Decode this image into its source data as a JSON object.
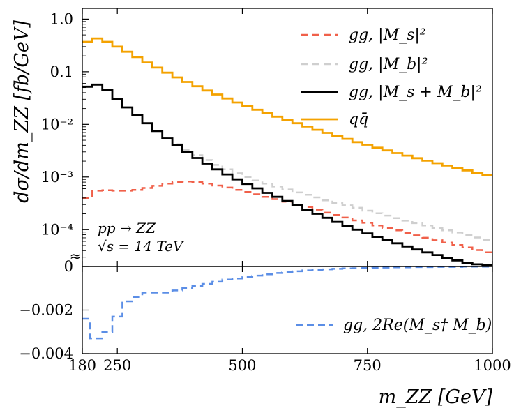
{
  "chart_data": {
    "type": "line",
    "x_range": [
      180,
      1000
    ],
    "xlabel": "m_ZZ [GeV]",
    "ylabel": "dσ/dm_ZZ [fb/GeV]",
    "annotation": {
      "line1": "pp → ZZ",
      "line2": "√s = 14 TeV"
    },
    "axis_break_symbol": "≈",
    "upper_panel": {
      "scale": "log",
      "ylim": [
        2e-05,
        1.6
      ],
      "x_ticks": [
        180,
        250,
        500,
        750,
        1000
      ],
      "y_ticks": [
        {
          "value": 1.0,
          "label": "1.0"
        },
        {
          "value": 0.1,
          "label": "0.1"
        },
        {
          "value": 0.01,
          "label": "10⁻²"
        },
        {
          "value": 0.001,
          "label": "10⁻³"
        },
        {
          "value": 0.0001,
          "label": "10⁻⁴"
        }
      ],
      "bin_edges": [
        180,
        200,
        220,
        240,
        260,
        280,
        300,
        320,
        340,
        360,
        380,
        400,
        420,
        440,
        460,
        480,
        500,
        520,
        540,
        560,
        580,
        600,
        620,
        640,
        660,
        680,
        700,
        720,
        740,
        760,
        780,
        800,
        820,
        840,
        860,
        880,
        900,
        920,
        940,
        960,
        980,
        1000
      ],
      "series": [
        {
          "name": "gg, |M_s|²",
          "color": "#f0604a",
          "dash": "10,6",
          "values": [
            0.0004,
            0.00055,
            0.00056,
            0.00055,
            0.00055,
            0.00057,
            0.00062,
            0.00068,
            0.00075,
            0.0008,
            0.00082,
            0.0008,
            0.00075,
            0.00069,
            0.00063,
            0.00057,
            0.00052,
            0.00047,
            0.00042,
            0.00038,
            0.00034,
            0.0003,
            0.00027,
            0.00024,
            0.00021,
            0.00019,
            0.00017,
            0.00015,
            0.000135,
            0.00012,
            0.000108,
            9.7e-05,
            8.7e-05,
            7.8e-05,
            7e-05,
            6.3e-05,
            5.7e-05,
            5.1e-05,
            4.6e-05,
            4.1e-05,
            3.7e-05
          ]
        },
        {
          "name": "gg, |M_b|²",
          "color": "#cfcfcf",
          "dash": "10,6",
          "values": [
            0.052,
            0.057,
            0.045,
            0.03,
            0.021,
            0.015,
            0.0105,
            0.0075,
            0.0055,
            0.0042,
            0.0033,
            0.0026,
            0.0021,
            0.0017,
            0.0014,
            0.00118,
            0.001,
            0.00086,
            0.00075,
            0.00066,
            0.00058,
            0.00051,
            0.00046,
            0.00041,
            0.00036,
            0.00032,
            0.00029,
            0.00026,
            0.00023,
            0.000205,
            0.000185,
            0.000165,
            0.000148,
            0.000133,
            0.00012,
            0.000108,
            9.7e-05,
            8.8e-05,
            7.9e-05,
            7.1e-05,
            6.4e-05
          ]
        },
        {
          "name": "gg, |M_s + M_b|²",
          "color": "#000000",
          "dash": "none",
          "values": [
            0.052,
            0.057,
            0.045,
            0.03,
            0.021,
            0.015,
            0.0105,
            0.0075,
            0.0054,
            0.004,
            0.003,
            0.0023,
            0.0018,
            0.0014,
            0.00112,
            0.0009,
            0.00074,
            0.00061,
            0.0005,
            0.00042,
            0.00035,
            0.00029,
            0.00024,
            0.0002,
            0.000168,
            0.00014,
            0.000118,
            0.0001,
            8.5e-05,
            7.3e-05,
            6.3e-05,
            5.5e-05,
            4.8e-05,
            4.2e-05,
            3.7e-05,
            3.3e-05,
            2.9e-05,
            2.6e-05,
            2.35e-05,
            2.2e-05,
            2.1e-05
          ]
        },
        {
          "name": "qq̄",
          "color": "#f4a200",
          "dash": "none",
          "values": [
            0.37,
            0.43,
            0.37,
            0.3,
            0.24,
            0.19,
            0.15,
            0.12,
            0.096,
            0.078,
            0.064,
            0.053,
            0.044,
            0.037,
            0.031,
            0.026,
            0.0222,
            0.019,
            0.0163,
            0.014,
            0.0121,
            0.0105,
            0.0091,
            0.0079,
            0.0069,
            0.006,
            0.0053,
            0.0046,
            0.0041,
            0.0036,
            0.0032,
            0.00285,
            0.00255,
            0.00228,
            0.00204,
            0.00183,
            0.00165,
            0.00148,
            0.00133,
            0.0012,
            0.00108
          ]
        }
      ],
      "legend": [
        "gg,  |M_s|²",
        "gg,  |M_b|²",
        "gg,  |M_s + M_b|²",
        "qq̄"
      ],
      "legend_position": "top-right"
    },
    "lower_panel": {
      "scale": "linear",
      "ylim": [
        -0.004,
        0
      ],
      "y_ticks": [
        {
          "value": 0,
          "label": "0"
        },
        {
          "value": -0.002,
          "label": "−0.002"
        },
        {
          "value": -0.004,
          "label": "−0.004"
        }
      ],
      "bin_edges": [
        180,
        195,
        205,
        220,
        240,
        260,
        280,
        300,
        320,
        340,
        360,
        380,
        400,
        420,
        440,
        460,
        480,
        500,
        520,
        540,
        560,
        580,
        600,
        620,
        640,
        660,
        680,
        700,
        720,
        740,
        760,
        780,
        800,
        820,
        840,
        860,
        880,
        900,
        920,
        940,
        960,
        980,
        1000
      ],
      "series": [
        {
          "name": "gg, 2Re(M_s† M_b)",
          "color": "#5b8ee6",
          "dash": "10,6",
          "values": [
            -0.0024,
            -0.0033,
            -0.0033,
            -0.003,
            -0.0023,
            -0.0016,
            -0.0014,
            -0.0012,
            -0.0012,
            -0.0012,
            -0.0011,
            -0.001,
            -0.0009,
            -0.0008,
            -0.0007,
            -0.0006,
            -0.00055,
            -0.00048,
            -0.00042,
            -0.00036,
            -0.0003,
            -0.00026,
            -0.00022,
            -0.00018,
            -0.00015,
            -0.00013,
            -0.00011,
            -9e-05,
            -8e-05,
            -7e-05,
            -6e-05,
            -5e-05,
            -4e-05,
            -4e-05,
            -3e-05,
            -3e-05,
            -2e-05,
            -2e-05,
            -2e-05,
            -1e-05,
            -1e-05,
            -1e-05
          ]
        }
      ],
      "legend": [
        "gg,  2Re(M_s† M_b)"
      ],
      "legend_position": "bottom-right"
    }
  }
}
